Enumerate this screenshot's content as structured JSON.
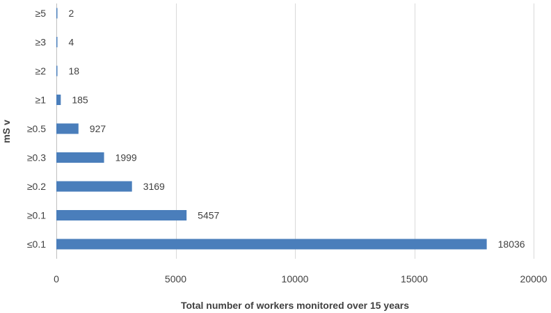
{
  "chart_data": {
    "type": "bar",
    "orientation": "horizontal",
    "categories": [
      "≥5",
      "≥3",
      "≥2",
      "≥1",
      "≥0.5",
      "≥0.3",
      "≥0.2",
      "≥0.1",
      "≤0.1"
    ],
    "values": [
      2,
      4,
      18,
      185,
      927,
      1999,
      3169,
      5457,
      18036
    ],
    "data_labels": [
      "2",
      "4",
      "18",
      "185",
      "927",
      "1999",
      "3169",
      "5457",
      "18036"
    ],
    "xlabel": "Total number of workers monitored over 15 years",
    "ylabel": "mS v",
    "xlim": [
      0,
      20000
    ],
    "x_ticks": [
      0,
      5000,
      10000,
      15000,
      20000
    ],
    "x_tick_labels": [
      "0",
      "5000",
      "10000",
      "15000",
      "20000"
    ],
    "grid": "vertical",
    "legend": "none",
    "colors": {
      "bar": "#4a7ebb",
      "grid": "#d9d9d9",
      "text": "#404040"
    }
  }
}
